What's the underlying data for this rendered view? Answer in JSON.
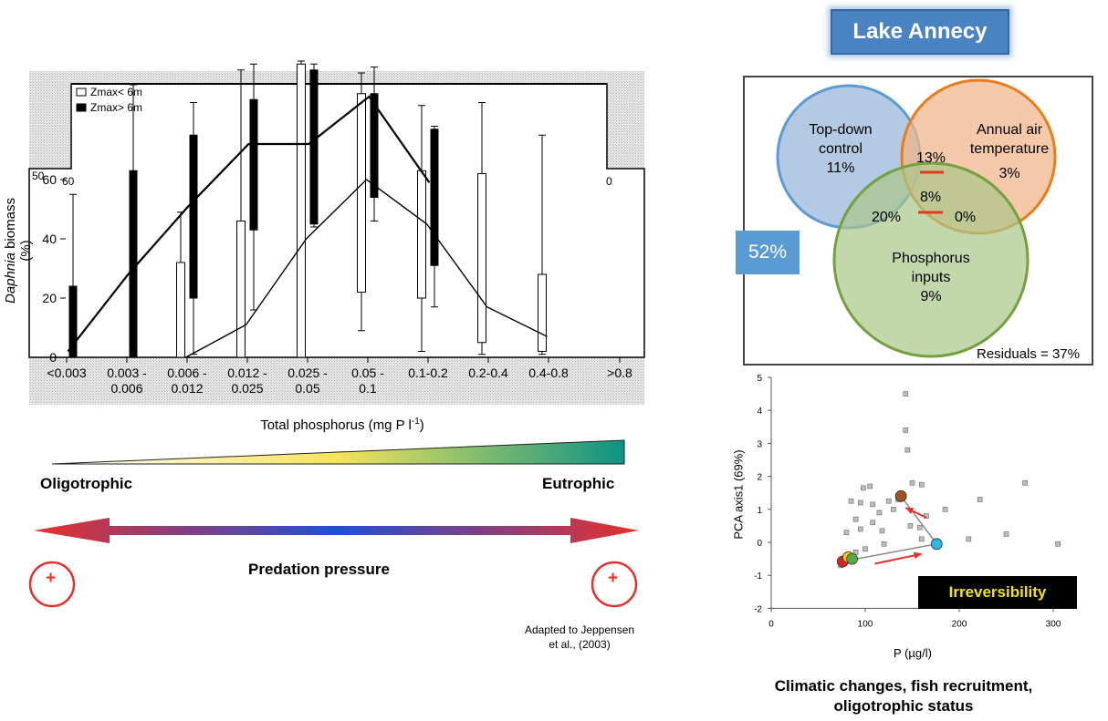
{
  "left_chart": {
    "chart_data": {
      "type": "bar",
      "title": "",
      "xlabel": "Total phosphorus (mg P l-1)",
      "xlabel_main": "Total phosphorus (mg P l",
      "xlabel_sup": "-1",
      "xlabel_tail": ")",
      "ylabel_italic": "Daphnia",
      "ylabel_rest": " biomass (%)",
      "ylim": [
        0,
        80
      ],
      "yticks": [
        "0",
        "20",
        "40",
        "60"
      ],
      "categories": [
        "<0.003",
        "0.003 -\n0.006",
        "0.006 -\n0.012",
        "0.012 -\n0.025",
        "0.025 -\n0.05",
        "0.05 -\n0.1",
        "0.1-0.2",
        "0.2-0.4",
        "0.4-0.8",
        ">0.8"
      ],
      "category_lines": [
        [
          "<0.003",
          ""
        ],
        [
          "0.003 -",
          "0.006"
        ],
        [
          "0.006 -",
          "0.012"
        ],
        [
          "0.012 -",
          "0.025"
        ],
        [
          "0.025 -",
          "0.05"
        ],
        [
          "0.05 -",
          "0.1"
        ],
        [
          "0.1-0.2",
          ""
        ],
        [
          "0.2-0.4",
          ""
        ],
        [
          "0.4-0.8",
          ""
        ],
        [
          ">0.8",
          ""
        ]
      ],
      "legend": [
        "Zmax< 6m",
        "Zmax> 6m"
      ],
      "series": [
        {
          "name": "Zmax< 6m",
          "fill": "white",
          "boxes": [
            {
              "cat": 2,
              "low": 0,
              "high": 32,
              "wlow": 0,
              "whigh": 49
            },
            {
              "cat": 3,
              "low": 0,
              "high": 46,
              "wlow": 0,
              "whigh": 97
            },
            {
              "cat": 4,
              "low": 0,
              "high": 99,
              "wlow": 0,
              "whigh": 100
            },
            {
              "cat": 5,
              "low": 22,
              "high": 89,
              "wlow": 9,
              "whigh": 96
            },
            {
              "cat": 6,
              "low": 20,
              "high": 63,
              "wlow": 2,
              "whigh": 85
            },
            {
              "cat": 7,
              "low": 5,
              "high": 62,
              "wlow": 1,
              "whigh": 86
            },
            {
              "cat": 8,
              "low": 2,
              "high": 28,
              "wlow": 1,
              "whigh": 75
            }
          ],
          "median": [
            {
              "cat": 2,
              "v": 0
            },
            {
              "cat": 3,
              "v": 11
            },
            {
              "cat": 4,
              "v": 40
            },
            {
              "cat": 5,
              "v": 60
            },
            {
              "cat": 6,
              "v": 45
            },
            {
              "cat": 7,
              "v": 17
            },
            {
              "cat": 8,
              "v": 7
            }
          ]
        },
        {
          "name": "Zmax> 6m",
          "fill": "black",
          "boxes": [
            {
              "cat": 0,
              "low": 0,
              "high": 24,
              "wlow": 0,
              "whigh": 55
            },
            {
              "cat": 1,
              "low": 0,
              "high": 63,
              "wlow": 0,
              "whigh": 92
            },
            {
              "cat": 2,
              "low": 20,
              "high": 75,
              "wlow": 1,
              "whigh": 86
            },
            {
              "cat": 3,
              "low": 43,
              "high": 87,
              "wlow": 16,
              "whigh": 99
            },
            {
              "cat": 4,
              "low": 45,
              "high": 97,
              "wlow": 44,
              "whigh": 99
            },
            {
              "cat": 5,
              "low": 54,
              "high": 89,
              "wlow": 46,
              "whigh": 98
            },
            {
              "cat": 6,
              "low": 31,
              "high": 77,
              "wlow": 17,
              "whigh": 78
            }
          ],
          "median": [
            {
              "cat": 0,
              "v": 2
            },
            {
              "cat": 1,
              "v": 28
            },
            {
              "cat": 2,
              "v": 51
            },
            {
              "cat": 3,
              "v": 72
            },
            {
              "cat": 4,
              "v": 72
            },
            {
              "cat": 5,
              "v": 88
            },
            {
              "cat": 6,
              "v": 59
            }
          ]
        }
      ],
      "inset_labels": [
        "50",
        "60",
        "0"
      ]
    }
  },
  "gradient": {
    "left_label": "Oligotrophic",
    "right_label": "Eutrophic",
    "arrow_label": "Predation pressure",
    "plus": "+",
    "colors": {
      "start": "#ffffff",
      "mid": "#f5e35a",
      "end": "#0d9384"
    }
  },
  "credit": {
    "line1": "Adapted to Jeppensen",
    "line2": "et al., (2003)"
  },
  "lake_title": "Lake Annecy",
  "venn": {
    "circles": [
      {
        "name": "Top-down control",
        "lines": [
          "Top-down",
          "control",
          "11%"
        ],
        "color": "#9bb7d9",
        "stroke": "#5b9bd5"
      },
      {
        "name": "Annual air temperature",
        "lines": [
          "Annual air",
          "temperature",
          "3%"
        ],
        "color": "#f0b58b",
        "stroke": "#e57e1b"
      },
      {
        "name": "Phosphorus inputs",
        "lines": [
          "Phosphorus",
          "inputs",
          "9%"
        ],
        "color": "#a9c68a",
        "stroke": "#74a03e"
      }
    ],
    "overlaps": {
      "top_down_temp": "13%",
      "all": "8%",
      "top_down_phos": "20%",
      "temp_phos": "0%"
    },
    "outside_pct": "52%",
    "residuals": "Residuals = 37%"
  },
  "pca_chart": {
    "chart_data": {
      "type": "scatter",
      "xlabel": "P (µg/l)",
      "ylabel": "PCA axis1 (69%)",
      "xlim": [
        0,
        320
      ],
      "ylim": [
        -2,
        5
      ],
      "xticks": [
        "0",
        "100",
        "200",
        "300"
      ],
      "yticks": [
        "-2",
        "-1",
        "0",
        "1",
        "2",
        "3",
        "4",
        "5"
      ],
      "points": [
        [
          143,
          4.5
        ],
        [
          143,
          3.4
        ],
        [
          145,
          2.8
        ],
        [
          98,
          1.65
        ],
        [
          105,
          1.7
        ],
        [
          150,
          1.8
        ],
        [
          160,
          1.75
        ],
        [
          270,
          1.8
        ],
        [
          222,
          1.3
        ],
        [
          85,
          1.25
        ],
        [
          95,
          1.2
        ],
        [
          108,
          1.15
        ],
        [
          125,
          1.25
        ],
        [
          135,
          1.3
        ],
        [
          115,
          0.9
        ],
        [
          130,
          1.0
        ],
        [
          185,
          1.0
        ],
        [
          165,
          0.8
        ],
        [
          90,
          0.7
        ],
        [
          108,
          0.6
        ],
        [
          148,
          0.5
        ],
        [
          158,
          0.45
        ],
        [
          80,
          0.3
        ],
        [
          95,
          0.4
        ],
        [
          118,
          0.35
        ],
        [
          305,
          -0.05
        ],
        [
          250,
          0.25
        ],
        [
          210,
          0.1
        ],
        [
          160,
          0.1
        ],
        [
          120,
          -0.05
        ],
        [
          100,
          -0.2
        ],
        [
          90,
          -0.3
        ],
        [
          82,
          -0.4
        ],
        [
          78,
          -0.5
        ],
        [
          76,
          -0.6
        ],
        [
          74,
          -0.7
        ],
        [
          84,
          -0.45
        ],
        [
          88,
          -0.5
        ]
      ],
      "highlight_points": [
        {
          "x": 138,
          "y": 1.4,
          "color": "#a0521f"
        },
        {
          "x": 176,
          "y": -0.05,
          "color": "#29b6e8"
        },
        {
          "x": 76,
          "y": -0.58,
          "color": "#d9261c"
        },
        {
          "x": 82,
          "y": -0.45,
          "color": "#f4c61e"
        },
        {
          "x": 86,
          "y": -0.5,
          "color": "#5aa845"
        }
      ],
      "trajectory": [
        [
          76,
          -0.58
        ],
        [
          176,
          -0.05
        ],
        [
          138,
          1.4
        ]
      ],
      "arrows": [
        [
          [
            110,
            -0.65
          ],
          [
            160,
            -0.35
          ]
        ],
        [
          [
            165,
            0.75
          ],
          [
            143,
            1.05
          ]
        ]
      ],
      "annotation": "Irreversibility"
    }
  },
  "caption": {
    "line1": "Climatic changes, fish recruitment,",
    "line2": "oligotrophic status"
  }
}
